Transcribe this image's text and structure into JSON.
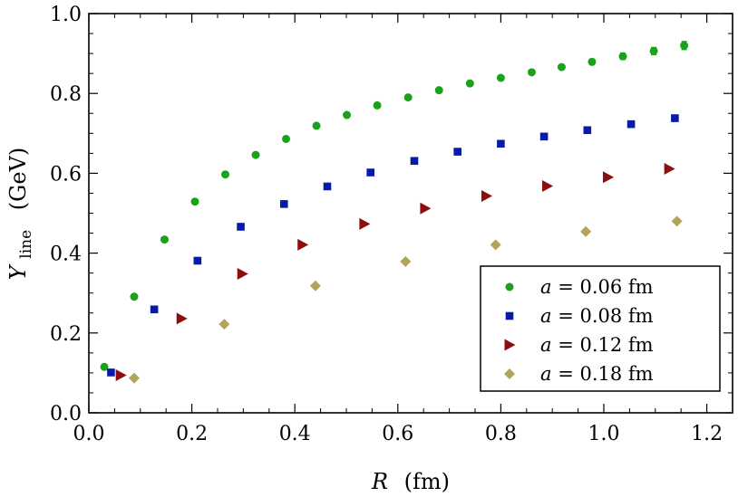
{
  "chart_data": {
    "type": "scatter",
    "title": "",
    "xlabel": {
      "symbol": "R",
      "unit": "(fm)"
    },
    "ylabel": {
      "symbol": "Y",
      "subscript": "line",
      "unit": "(GeV)"
    },
    "xlim": [
      0.0,
      1.25
    ],
    "ylim": [
      0.0,
      1.0
    ],
    "xticks": [
      "0.0",
      "0.2",
      "0.4",
      "0.6",
      "0.8",
      "1.0",
      "1.2"
    ],
    "xtick_values": [
      0.0,
      0.2,
      0.4,
      0.6,
      0.8,
      1.0,
      1.2
    ],
    "yticks": [
      "0.0",
      "0.2",
      "0.4",
      "0.6",
      "0.8",
      "1.0"
    ],
    "ytick_values": [
      0.0,
      0.2,
      0.4,
      0.6,
      0.8,
      1.0
    ],
    "grid": false,
    "legend_position": "bottom-right",
    "series": [
      {
        "name": "a = 0.06 fm",
        "label_var": "a",
        "label_rest": " = 0.06 fm",
        "marker": "circle",
        "color": "#1aa31a",
        "points": [
          [
            0.03,
            0.115
          ],
          [
            0.088,
            0.291
          ],
          [
            0.147,
            0.434
          ],
          [
            0.206,
            0.529
          ],
          [
            0.265,
            0.597
          ],
          [
            0.324,
            0.646
          ],
          [
            0.383,
            0.686
          ],
          [
            0.442,
            0.719
          ],
          [
            0.501,
            0.746
          ],
          [
            0.56,
            0.77
          ],
          [
            0.62,
            0.79
          ],
          [
            0.68,
            0.808
          ],
          [
            0.74,
            0.825
          ],
          [
            0.8,
            0.839
          ],
          [
            0.86,
            0.853
          ],
          [
            0.918,
            0.866
          ],
          [
            0.977,
            0.879
          ],
          [
            1.037,
            0.893
          ],
          [
            1.097,
            0.906
          ],
          [
            1.156,
            0.92
          ]
        ],
        "error_bars": [
          0,
          0,
          0,
          0,
          0,
          0,
          0,
          0,
          0,
          0,
          0,
          0,
          0,
          0,
          0,
          0,
          0.007,
          0.008,
          0.009,
          0.01
        ]
      },
      {
        "name": "a = 0.08 fm",
        "label_var": "a",
        "label_rest": " = 0.08 fm",
        "marker": "square",
        "color": "#0a1aa8",
        "points": [
          [
            0.043,
            0.101
          ],
          [
            0.127,
            0.259
          ],
          [
            0.211,
            0.381
          ],
          [
            0.295,
            0.466
          ],
          [
            0.379,
            0.523
          ],
          [
            0.463,
            0.567
          ],
          [
            0.547,
            0.602
          ],
          [
            0.632,
            0.631
          ],
          [
            0.716,
            0.654
          ],
          [
            0.8,
            0.674
          ],
          [
            0.884,
            0.692
          ],
          [
            0.968,
            0.708
          ],
          [
            1.053,
            0.723
          ],
          [
            1.138,
            0.738
          ]
        ]
      },
      {
        "name": "a = 0.12 fm",
        "label_var": "a",
        "label_rest": " = 0.12 fm",
        "marker": "triangle-right",
        "color": "#8b0f0f",
        "points": [
          [
            0.062,
            0.094
          ],
          [
            0.18,
            0.236
          ],
          [
            0.298,
            0.348
          ],
          [
            0.415,
            0.421
          ],
          [
            0.535,
            0.473
          ],
          [
            0.653,
            0.512
          ],
          [
            0.772,
            0.543
          ],
          [
            0.89,
            0.568
          ],
          [
            1.008,
            0.59
          ],
          [
            1.127,
            0.611
          ]
        ]
      },
      {
        "name": "a = 0.18 fm",
        "label_var": "a",
        "label_rest": " = 0.18 fm",
        "marker": "diamond",
        "color": "#b3a45a",
        "points": [
          [
            0.088,
            0.087
          ],
          [
            0.263,
            0.222
          ],
          [
            0.44,
            0.318
          ],
          [
            0.615,
            0.379
          ],
          [
            0.79,
            0.421
          ],
          [
            0.965,
            0.454
          ],
          [
            1.142,
            0.48
          ]
        ]
      }
    ]
  }
}
